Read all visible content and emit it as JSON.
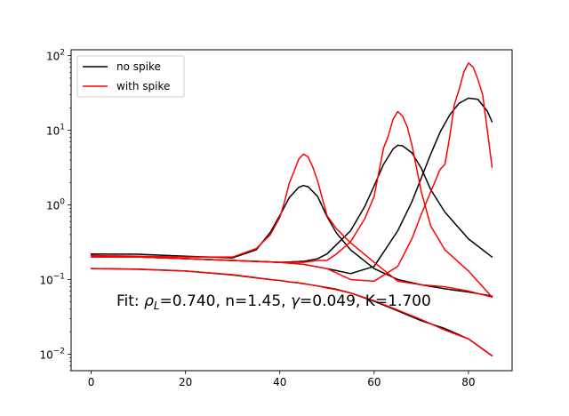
{
  "chart_data": {
    "type": "line",
    "title": "",
    "xlabel": "",
    "ylabel": "",
    "xlim": [
      -4.25,
      89.25
    ],
    "ylim": [
      0.006,
      120
    ],
    "yscale": "log",
    "grid": false,
    "legend_placement": "upper-left",
    "x_ticks": [
      0,
      20,
      40,
      60,
      80
    ],
    "x_tick_labels": [
      "0",
      "20",
      "40",
      "60",
      "80"
    ],
    "y_ticks": [
      0.01,
      0.1,
      1,
      10,
      100
    ],
    "y_tick_labels": [
      {
        "base": "10",
        "exp": "−2"
      },
      {
        "base": "10",
        "exp": "−1"
      },
      {
        "base": "10",
        "exp": "0"
      },
      {
        "base": "10",
        "exp": "1"
      },
      {
        "base": "10",
        "exp": "2"
      }
    ],
    "legend": [
      {
        "label": "no spike",
        "color": "#000000"
      },
      {
        "label": "with spike",
        "color": "#ff0000"
      }
    ],
    "annotation": {
      "prefix": "Fit: ",
      "rho_symbol": "ρ",
      "rho_subscript": "L",
      "rho_value": "=0.740, n=1.45, ",
      "gamma_symbol": "γ",
      "suffix": "=0.049, K=1.700"
    },
    "series": [
      {
        "legend": "no spike",
        "color": "#000000",
        "x": [
          0,
          10,
          20,
          30,
          35,
          38,
          40,
          42,
          44,
          45,
          46,
          48,
          50,
          52,
          55,
          60,
          65,
          70,
          75,
          80,
          85
        ],
        "y": [
          0.14,
          0.138,
          0.13,
          0.115,
          0.105,
          0.1,
          0.097,
          0.093,
          0.09,
          0.088,
          0.086,
          0.082,
          0.078,
          0.074,
          0.066,
          0.051,
          0.038,
          0.028,
          0.022,
          0.016,
          0.0095
        ]
      },
      {
        "legend": "no spike",
        "color": "#000000",
        "x": [
          0,
          10,
          20,
          30,
          35,
          38,
          40,
          42,
          44,
          45,
          46,
          48,
          50,
          52,
          55,
          60,
          65,
          70,
          75,
          80,
          85
        ],
        "y": [
          0.22,
          0.218,
          0.205,
          0.195,
          0.25,
          0.43,
          0.72,
          1.25,
          1.72,
          1.82,
          1.75,
          1.3,
          0.7,
          0.42,
          0.25,
          0.14,
          0.1,
          0.085,
          0.075,
          0.068,
          0.06
        ]
      },
      {
        "legend": "no spike",
        "color": "#000000",
        "x": [
          0,
          10,
          20,
          30,
          40,
          45,
          48,
          50,
          55,
          58,
          60,
          62,
          64,
          65,
          66,
          68,
          70,
          72,
          75,
          80,
          85
        ],
        "y": [
          0.21,
          0.2,
          0.19,
          0.18,
          0.17,
          0.175,
          0.19,
          0.22,
          0.45,
          0.95,
          1.8,
          3.5,
          5.6,
          6.3,
          6.2,
          5,
          3.1,
          1.6,
          0.8,
          0.35,
          0.2
        ]
      },
      {
        "legend": "no spike",
        "color": "#000000",
        "x": [
          0,
          10,
          20,
          30,
          40,
          45,
          50,
          55,
          60,
          65,
          68,
          70,
          72,
          74,
          76,
          78,
          80,
          82,
          84,
          85
        ],
        "y": [
          0.2,
          0.2,
          0.19,
          0.18,
          0.17,
          0.16,
          0.14,
          0.12,
          0.15,
          0.45,
          1.1,
          2.3,
          4.8,
          9.5,
          16,
          23,
          27,
          26,
          18,
          13
        ]
      },
      {
        "legend": "with spike",
        "color": "#ff0000",
        "x": [
          0,
          10,
          20,
          30,
          35,
          38,
          40,
          42,
          44,
          45,
          46,
          48,
          50,
          52,
          55,
          60,
          65,
          70,
          75,
          80,
          85
        ],
        "y": [
          0.14,
          0.137,
          0.13,
          0.116,
          0.106,
          0.1,
          0.097,
          0.093,
          0.09,
          0.088,
          0.086,
          0.082,
          0.077,
          0.073,
          0.066,
          0.052,
          0.039,
          0.029,
          0.021,
          0.016,
          0.0095
        ]
      },
      {
        "legend": "with spike",
        "color": "#ff0000",
        "x": [
          0,
          10,
          20,
          30,
          35,
          38,
          40,
          41,
          42,
          43,
          44,
          45,
          46,
          47,
          48,
          50,
          52,
          55,
          60,
          65,
          70,
          75,
          80,
          85
        ],
        "y": [
          0.21,
          0.205,
          0.2,
          0.2,
          0.26,
          0.4,
          0.68,
          1.1,
          1.95,
          2.8,
          4.1,
          4.8,
          4.4,
          3.2,
          2.1,
          0.72,
          0.48,
          0.31,
          0.17,
          0.095,
          0.085,
          0.08,
          0.07,
          0.058
        ]
      },
      {
        "legend": "with spike",
        "color": "#ff0000",
        "x": [
          0,
          10,
          20,
          30,
          35,
          40,
          45,
          48,
          50,
          52,
          55,
          58,
          60,
          62,
          63,
          64,
          65,
          66,
          67,
          68,
          70,
          72,
          75,
          80,
          85
        ],
        "y": [
          0.2,
          0.2,
          0.19,
          0.18,
          0.175,
          0.17,
          0.17,
          0.18,
          0.18,
          0.22,
          0.32,
          0.65,
          1.3,
          5.8,
          8.4,
          14,
          17.8,
          15.6,
          11.2,
          6.4,
          1.5,
          0.52,
          0.25,
          0.13,
          0.058
        ]
      },
      {
        "legend": "with spike",
        "color": "#ff0000",
        "x": [
          0,
          10,
          20,
          30,
          40,
          45,
          50,
          55,
          60,
          65,
          68,
          70,
          72,
          74,
          75,
          76,
          77,
          78,
          79,
          80,
          81,
          82,
          83,
          84,
          85
        ],
        "y": [
          0.2,
          0.2,
          0.19,
          0.18,
          0.17,
          0.16,
          0.14,
          0.1,
          0.095,
          0.15,
          0.35,
          0.75,
          1.5,
          3,
          3.5,
          8,
          22,
          35,
          60,
          80,
          70,
          48,
          30,
          10,
          3.2
        ]
      }
    ]
  }
}
